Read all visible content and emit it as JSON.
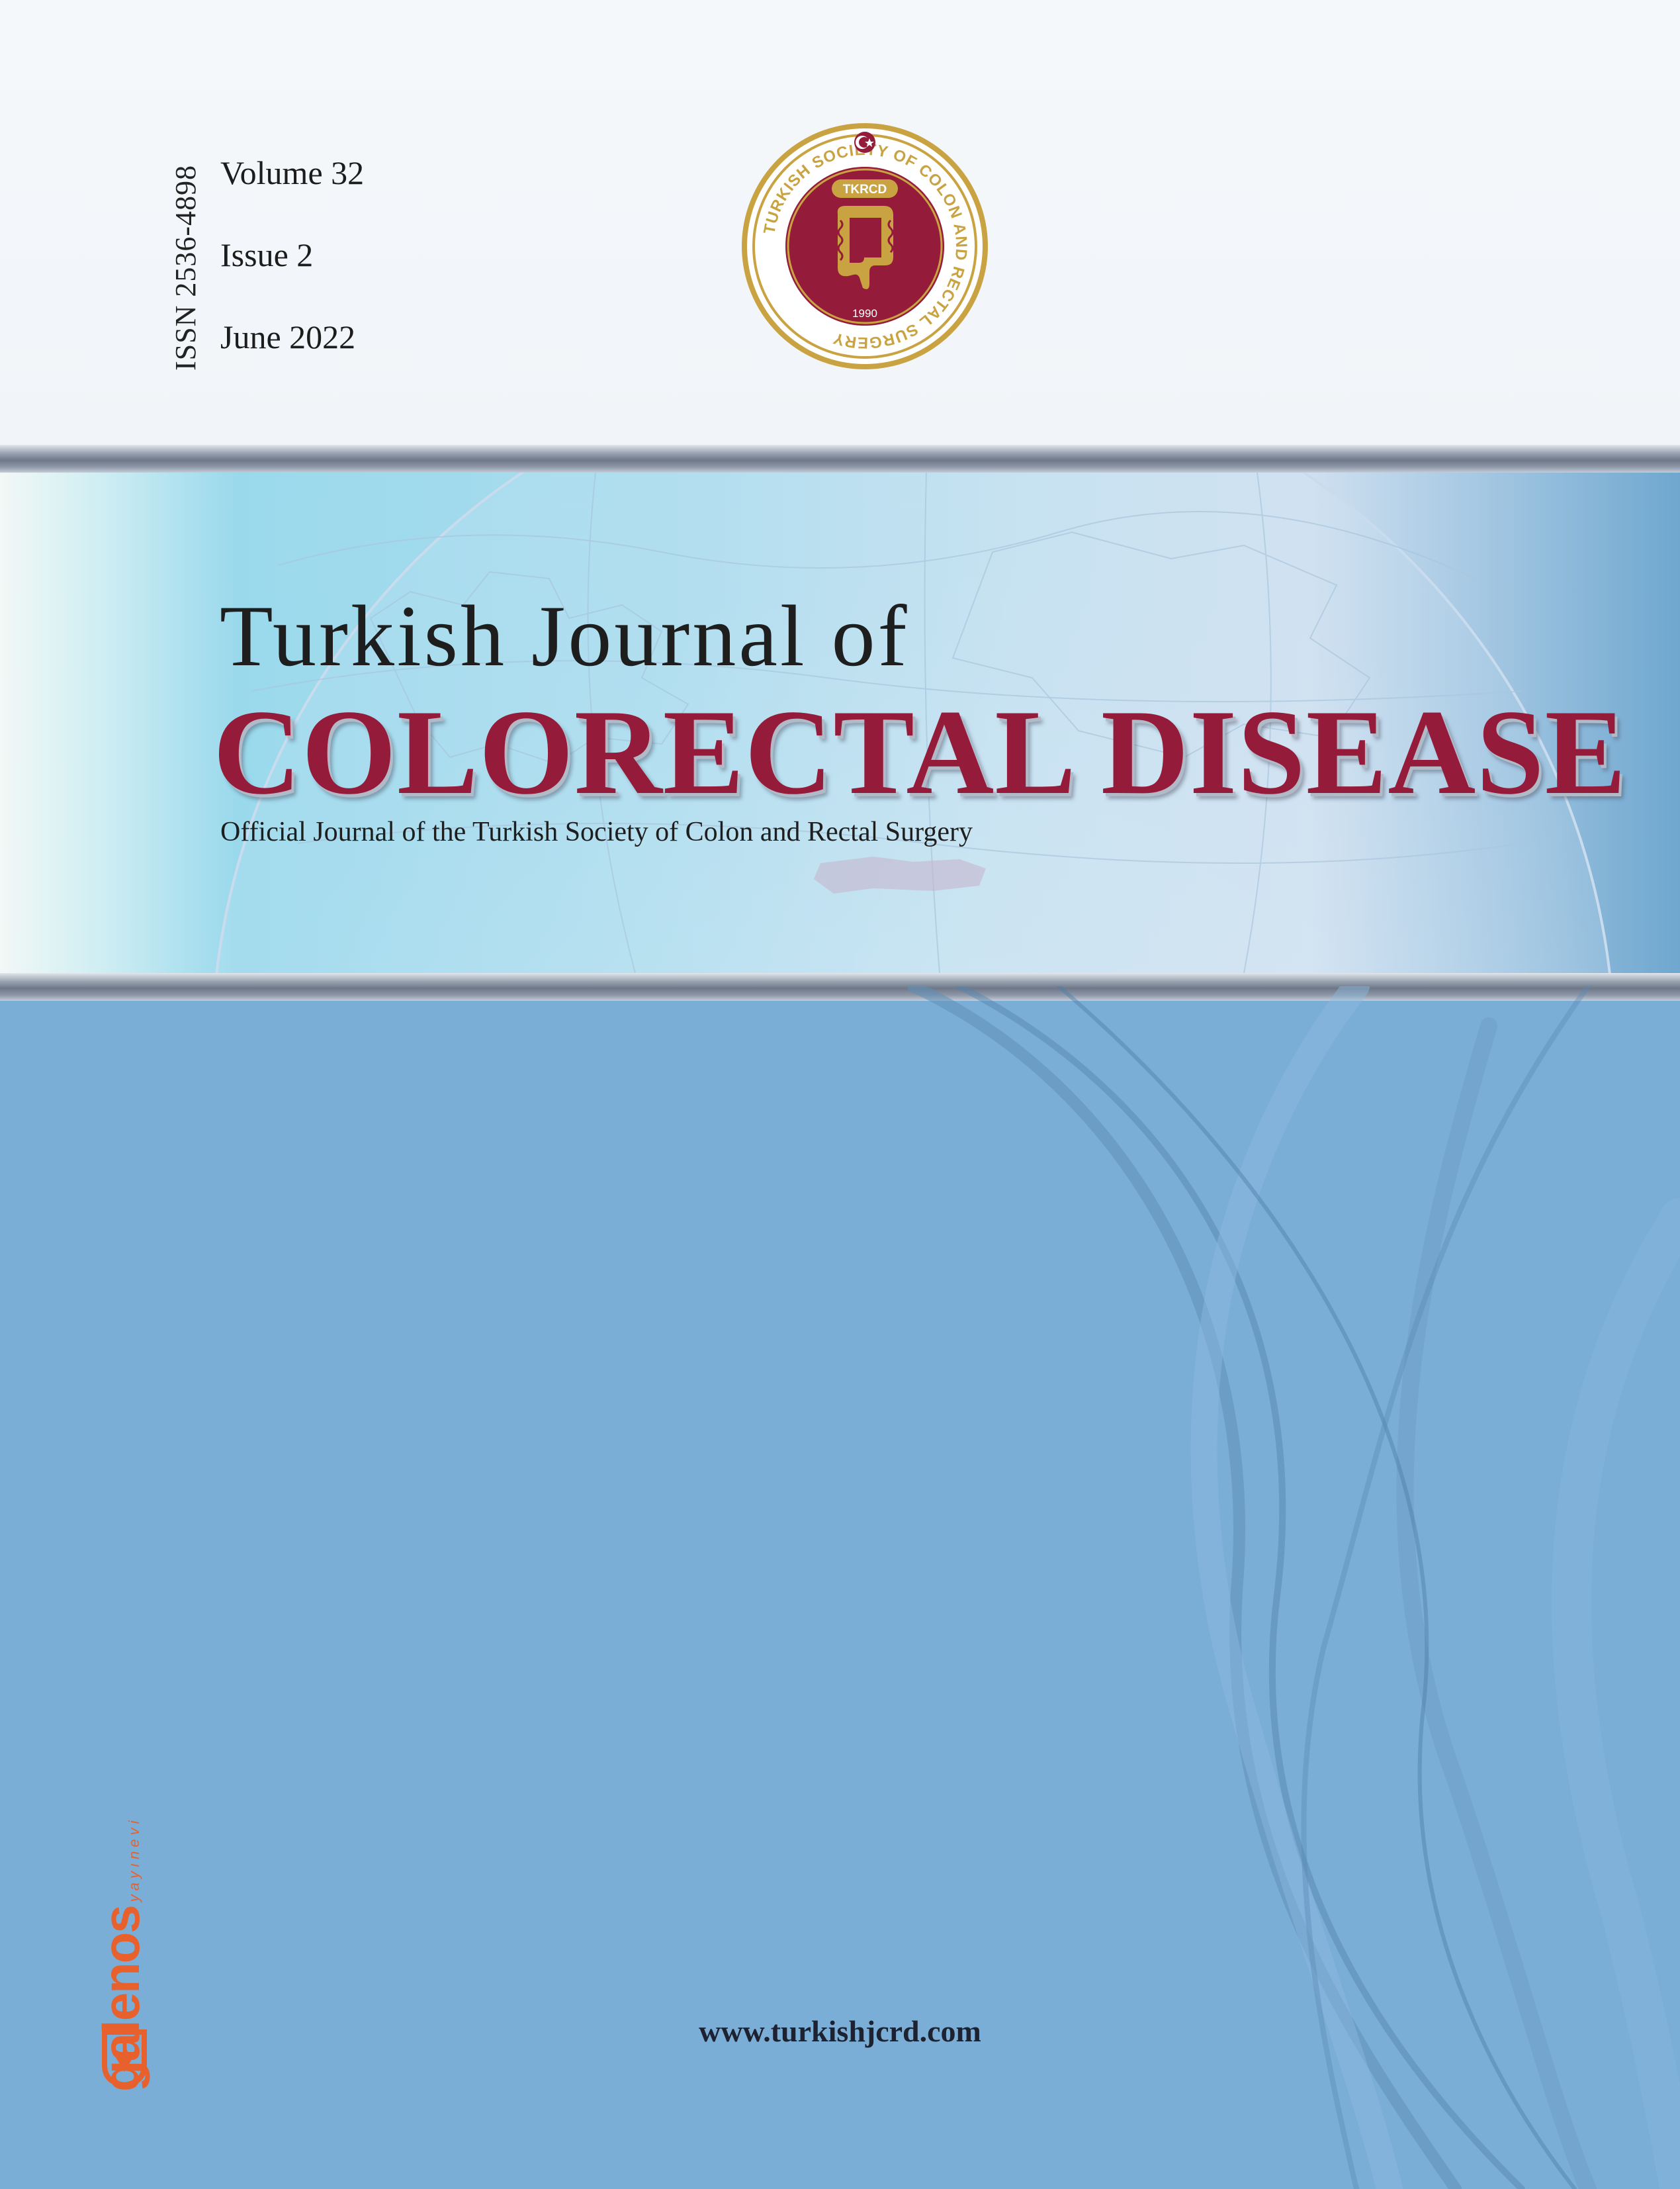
{
  "issn": "ISSN 2536-4898",
  "volume": "Volume 32",
  "issue": "Issue 2",
  "date": "June 2022",
  "seal": {
    "abbr": "TKRCD",
    "ring_text": "TURKISH SOCIETY OF COLON AND RECTAL SURGERY",
    "year": "1990"
  },
  "title": {
    "line1": "Turkish Journal of",
    "line2": "COLORECTAL DISEASE",
    "subtitle": "Official Journal of the Turkish Society of Colon and Rectal Surgery"
  },
  "publisher": {
    "name": "galenos",
    "sub": "yayınevi"
  },
  "url": "www.turkishjcrd.com",
  "colors": {
    "title_red": "#951b3a",
    "background_blue": "#7aaed6",
    "seal_gold": "#c9a341",
    "publisher_orange": "#e8612c"
  }
}
